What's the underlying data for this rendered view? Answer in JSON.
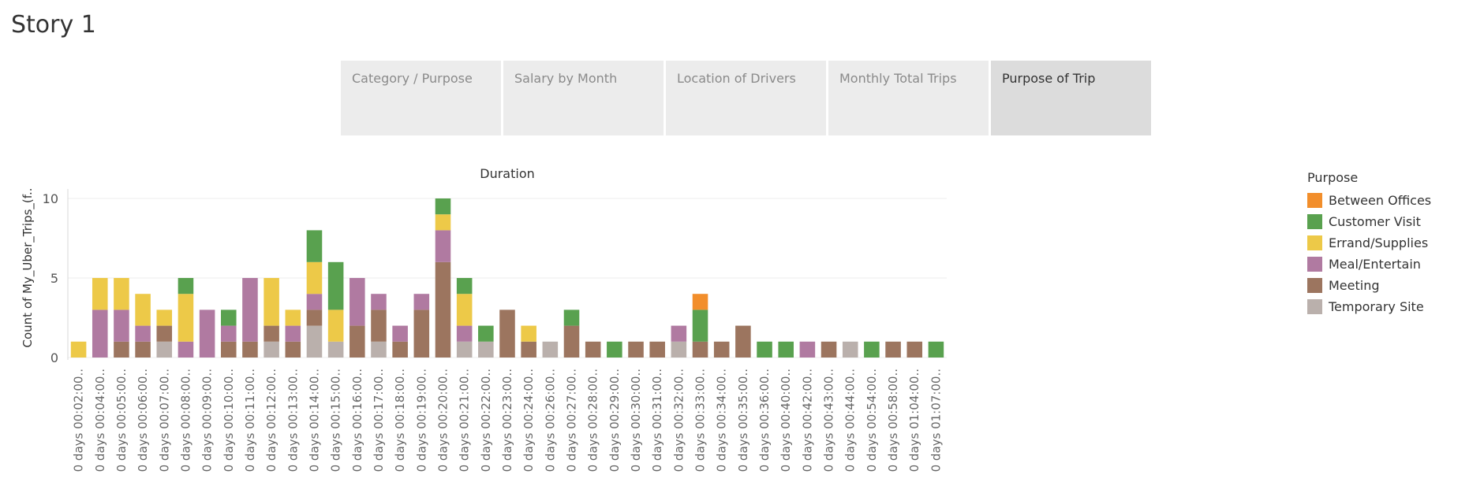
{
  "story_title": "Story 1",
  "tabs": [
    {
      "label": "Category / Purpose",
      "active": false
    },
    {
      "label": "Salary by Month",
      "active": false
    },
    {
      "label": "Location of Drivers",
      "active": false
    },
    {
      "label": "Monthly Total Trips",
      "active": false
    },
    {
      "label": "Purpose of Trip",
      "active": true
    }
  ],
  "legend": {
    "title": "Purpose",
    "items": [
      {
        "name": "Between Offices",
        "color": "#f28e2b"
      },
      {
        "name": "Customer Visit",
        "color": "#59a14f"
      },
      {
        "name": "Errand/Supplies",
        "color": "#edc948"
      },
      {
        "name": "Meal/Entertain",
        "color": "#b07aa1"
      },
      {
        "name": "Meeting",
        "color": "#9c755f"
      },
      {
        "name": "Temporary Site",
        "color": "#bab0ac"
      }
    ]
  },
  "chart_data": {
    "type": "bar",
    "stacked": true,
    "title": "Duration",
    "xlabel": "",
    "ylabel": "Count of My_Uber_Trips_(f..",
    "ylim": [
      0,
      10
    ],
    "yticks": [
      0,
      5,
      10
    ],
    "grid": true,
    "legend_position": "right",
    "categories": [
      "0 days 00:02:00..",
      "0 days 00:04:00..",
      "0 days 00:05:00..",
      "0 days 00:06:00..",
      "0 days 00:07:00..",
      "0 days 00:08:00..",
      "0 days 00:09:00..",
      "0 days 00:10:00..",
      "0 days 00:11:00..",
      "0 days 00:12:00..",
      "0 days 00:13:00..",
      "0 days 00:14:00..",
      "0 days 00:15:00..",
      "0 days 00:16:00..",
      "0 days 00:17:00..",
      "0 days 00:18:00..",
      "0 days 00:19:00..",
      "0 days 00:20:00..",
      "0 days 00:21:00..",
      "0 days 00:22:00..",
      "0 days 00:23:00..",
      "0 days 00:24:00..",
      "0 days 00:26:00..",
      "0 days 00:27:00..",
      "0 days 00:28:00..",
      "0 days 00:29:00..",
      "0 days 00:30:00..",
      "0 days 00:31:00..",
      "0 days 00:32:00..",
      "0 days 00:33:00..",
      "0 days 00:34:00..",
      "0 days 00:35:00..",
      "0 days 00:36:00..",
      "0 days 00:40:00..",
      "0 days 00:42:00..",
      "0 days 00:43:00..",
      "0 days 00:44:00..",
      "0 days 00:54:00..",
      "0 days 00:58:00..",
      "0 days 01:04:00..",
      "0 days 01:07:00.."
    ],
    "series": [
      {
        "name": "Temporary Site",
        "values": [
          0,
          0,
          0,
          0,
          1,
          0,
          0,
          0,
          0,
          1,
          0,
          2,
          1,
          0,
          1,
          0,
          0,
          0,
          1,
          1,
          0,
          0,
          1,
          0,
          0,
          0,
          0,
          0,
          1,
          0,
          0,
          0,
          0,
          0,
          0,
          0,
          1,
          0,
          0,
          0,
          0
        ]
      },
      {
        "name": "Meeting",
        "values": [
          0,
          0,
          1,
          1,
          1,
          0,
          0,
          1,
          1,
          1,
          1,
          1,
          0,
          2,
          2,
          1,
          3,
          6,
          0,
          0,
          3,
          1,
          0,
          2,
          1,
          0,
          1,
          1,
          0,
          1,
          1,
          2,
          0,
          0,
          0,
          1,
          0,
          0,
          1,
          1,
          0
        ]
      },
      {
        "name": "Meal/Entertain",
        "values": [
          0,
          3,
          2,
          1,
          0,
          1,
          3,
          1,
          4,
          0,
          1,
          1,
          0,
          3,
          1,
          1,
          1,
          2,
          1,
          0,
          0,
          0,
          0,
          0,
          0,
          0,
          0,
          0,
          1,
          0,
          0,
          0,
          0,
          0,
          1,
          0,
          0,
          0,
          0,
          0,
          0
        ]
      },
      {
        "name": "Errand/Supplies",
        "values": [
          1,
          2,
          2,
          2,
          1,
          3,
          0,
          0,
          0,
          3,
          1,
          2,
          2,
          0,
          0,
          0,
          0,
          1,
          2,
          0,
          0,
          1,
          0,
          0,
          0,
          0,
          0,
          0,
          0,
          0,
          0,
          0,
          0,
          0,
          0,
          0,
          0,
          0,
          0,
          0,
          0
        ]
      },
      {
        "name": "Customer Visit",
        "values": [
          0,
          0,
          0,
          0,
          0,
          1,
          0,
          1,
          0,
          0,
          0,
          2,
          3,
          0,
          0,
          0,
          0,
          1,
          1,
          1,
          0,
          0,
          0,
          1,
          0,
          1,
          0,
          0,
          0,
          2,
          0,
          0,
          1,
          1,
          0,
          0,
          0,
          1,
          0,
          0,
          1
        ]
      },
      {
        "name": "Between Offices",
        "values": [
          0,
          0,
          0,
          0,
          0,
          0,
          0,
          0,
          0,
          0,
          0,
          0,
          0,
          0,
          0,
          0,
          0,
          0,
          0,
          0,
          0,
          0,
          0,
          0,
          0,
          0,
          0,
          0,
          0,
          1,
          0,
          0,
          0,
          0,
          0,
          0,
          0,
          0,
          0,
          0,
          0
        ]
      }
    ]
  }
}
